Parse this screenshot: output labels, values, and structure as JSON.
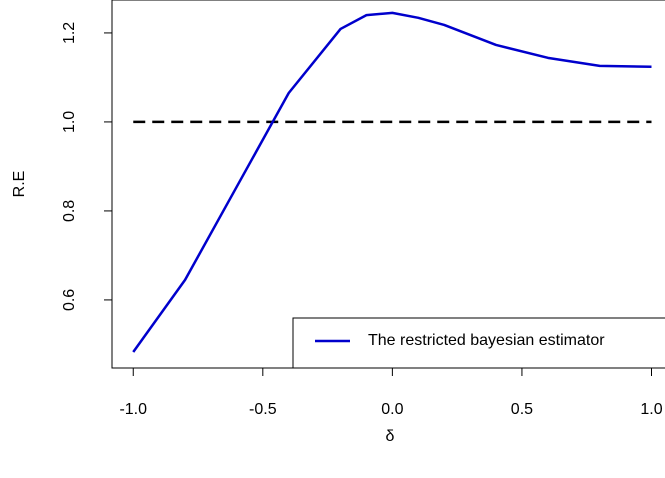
{
  "chart_data": {
    "type": "line",
    "x": [
      -1.0,
      -0.8,
      -0.6,
      -0.4,
      -0.2,
      -0.1,
      0.0,
      0.1,
      0.2,
      0.4,
      0.6,
      0.8,
      1.0
    ],
    "series": [
      {
        "name": "The restricted bayesian estimator",
        "color": "#0000cc",
        "values": [
          0.483,
          0.645,
          0.855,
          1.065,
          1.209,
          1.24,
          1.245,
          1.234,
          1.218,
          1.173,
          1.144,
          1.126,
          1.124
        ]
      }
    ],
    "reference_line": {
      "y": 1.0,
      "color": "#000000",
      "dashed": true
    },
    "xlabel": "δ",
    "ylabel": "R.E",
    "xlim": [
      -1.082,
      1.066
    ],
    "ylim": [
      0.447,
      1.274
    ],
    "xticks": [
      {
        "value": -1.0,
        "label": "-1.0"
      },
      -0.5,
      {
        "value": 0.0,
        "label": "0.0"
      },
      0.5,
      {
        "value": 1.0,
        "label": "1.0"
      }
    ],
    "yticks": [
      0.6,
      0.8,
      {
        "value": 1.0,
        "label": "1.0"
      },
      1.2
    ],
    "legend": "bottomright",
    "grid": false
  }
}
